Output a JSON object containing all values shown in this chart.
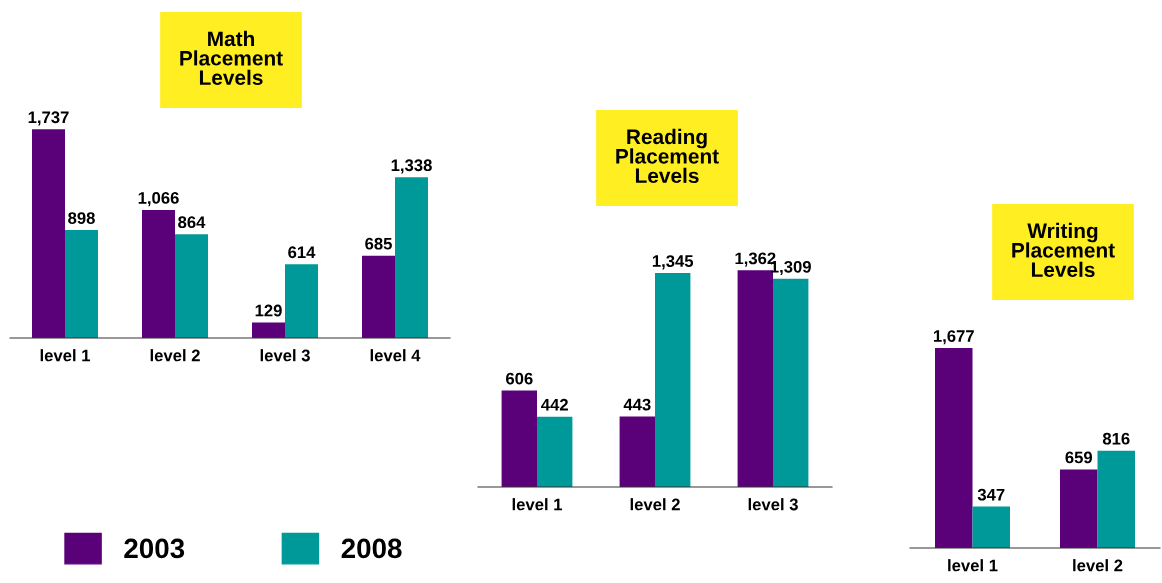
{
  "chart_data": [
    {
      "type": "bar",
      "title": "Math\nPlacement\nLevels",
      "categories": [
        "level 1",
        "level 2",
        "level 3",
        "level 4"
      ],
      "legend": "bottom",
      "series": [
        {
          "name": "2003",
          "color": "#5a0078",
          "values": [
            1737,
            1066,
            129,
            685
          ],
          "value_labels": [
            "1,737",
            "1,066",
            "129",
            "685"
          ]
        },
        {
          "name": "2008",
          "color": "#009999",
          "values": [
            898,
            864,
            614,
            1338
          ],
          "value_labels": [
            "898",
            "864",
            "614",
            "1,338"
          ]
        }
      ]
    },
    {
      "type": "bar",
      "title": "Reading\nPlacement\nLevels",
      "categories": [
        "level 1",
        "level 2",
        "level 3"
      ],
      "series": [
        {
          "color": "#5a0078",
          "values": [
            606,
            443,
            1362
          ],
          "value_labels": [
            "606",
            "443",
            "1,362"
          ]
        },
        {
          "color": "#009999",
          "values": [
            442,
            1345,
            1309
          ],
          "value_labels": [
            "442",
            "1,345",
            "1,309"
          ]
        }
      ]
    },
    {
      "type": "bar",
      "title": "Writing\nPlacement\nLevels",
      "categories": [
        "level 1",
        "level 2"
      ],
      "series": [
        {
          "color": "#5a0078",
          "values": [
            1677,
            659
          ],
          "value_labels": [
            "1,677",
            "659"
          ]
        },
        {
          "color": "#009999",
          "values": [
            347,
            816
          ],
          "value_labels": [
            "347",
            "816"
          ]
        }
      ]
    }
  ]
}
